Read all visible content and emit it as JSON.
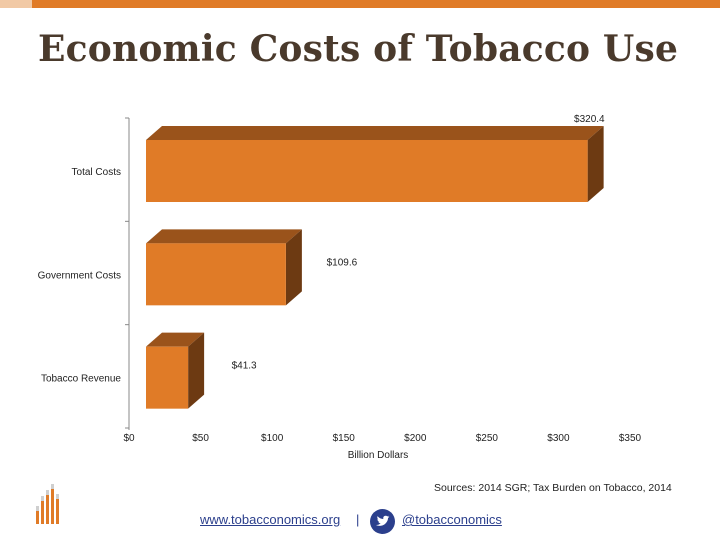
{
  "title": "Economic Costs of Tobacco Use",
  "colors": {
    "accent": "#e07b27",
    "bar_front": "#e07b27",
    "bar_top": "#9a531b",
    "bar_side": "#6d3a12",
    "link": "#2b3f8c"
  },
  "chart_data": {
    "type": "bar",
    "orientation": "horizontal",
    "style": "3d",
    "categories": [
      "Total Costs",
      "Government Costs",
      "Tobacco Revenue"
    ],
    "values": [
      320.4,
      109.6,
      41.3
    ],
    "data_labels": [
      "$320.4",
      "$109.6",
      "$41.3"
    ],
    "xlabel": "Billion Dollars",
    "ylabel": "",
    "xlim": [
      0,
      350
    ],
    "x_ticks": [
      0,
      50,
      100,
      150,
      200,
      250,
      300,
      350
    ],
    "x_tick_labels": [
      "$0",
      "$50",
      "$100",
      "$150",
      "$200",
      "$250",
      "$300",
      "$350"
    ],
    "grid": false,
    "legend": "none"
  },
  "footer": {
    "source": "Sources: 2014 SGR; Tax Burden on Tobacco, 2014",
    "website": "www.tobacconomics.org",
    "separator": "|",
    "handle": "@tobacconomics",
    "logo_icon": "tobacconomics-logo-icon",
    "twitter_icon": "twitter-bird-icon"
  }
}
